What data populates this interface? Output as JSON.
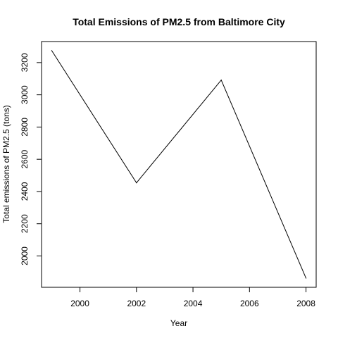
{
  "chart_data": {
    "type": "line",
    "title": "Total Emissions of PM2.5 from Baltimore City",
    "xlabel": "Year",
    "ylabel": "Total emissions of PM2.5 (tons)",
    "x": [
      1999,
      2002,
      2005,
      2008
    ],
    "series": [
      {
        "values": [
          3274.18,
          2453.92,
          3091.35,
          1862.28
        ]
      }
    ],
    "xlim": [
      1999,
      2008
    ],
    "ylim": [
      1862,
      3274
    ],
    "xticks": [
      2000,
      2002,
      2004,
      2006,
      2008
    ],
    "yticks": [
      2000,
      2200,
      2400,
      2600,
      2800,
      3000,
      3200
    ],
    "grid": false,
    "line_color": "#000000"
  }
}
